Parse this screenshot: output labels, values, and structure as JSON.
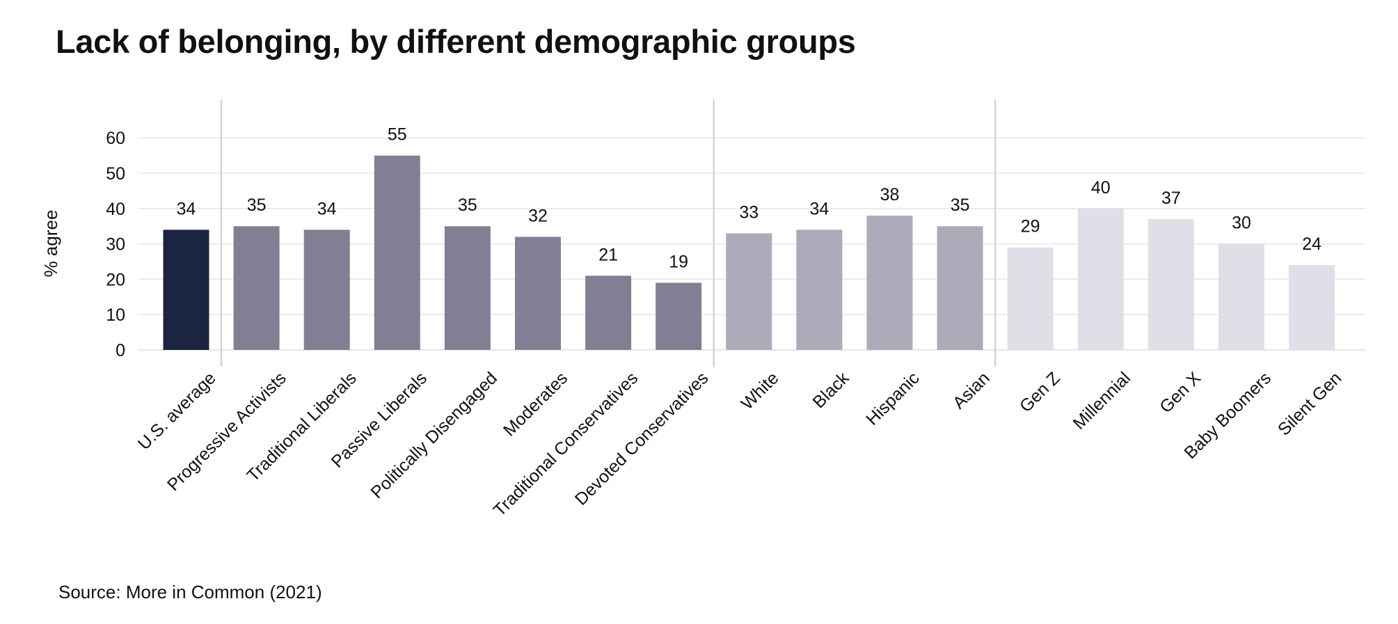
{
  "title": "Lack of belonging, by different demographic groups",
  "source": "Source: More in Common (2021)",
  "chart_data": {
    "type": "bar",
    "title": "Lack of belonging, by different demographic groups",
    "xlabel": "",
    "ylabel": "% agree",
    "ylim": [
      0,
      70
    ],
    "yticks": [
      0,
      10,
      20,
      30,
      40,
      50,
      60
    ],
    "grid": true,
    "legend": "none",
    "categories": [
      "U.S. average",
      "Progressive Activists",
      "Traditional Liberals",
      "Passive Liberals",
      "Politically Disengaged",
      "Moderates",
      "Traditional Conservatives",
      "Devoted Conservatives",
      "White",
      "Black",
      "Hispanic",
      "Asian",
      "Gen Z",
      "Millennial",
      "Gen X",
      "Baby Boomers",
      "Silent Gen"
    ],
    "values": [
      34,
      35,
      34,
      55,
      35,
      32,
      21,
      19,
      33,
      34,
      38,
      35,
      29,
      40,
      37,
      30,
      24
    ],
    "groups": [
      {
        "members": [
          "U.S. average"
        ],
        "color": "#1b2440"
      },
      {
        "members": [
          "Progressive Activists",
          "Traditional Liberals",
          "Passive Liberals",
          "Politically Disengaged",
          "Moderates",
          "Traditional Conservatives",
          "Devoted Conservatives"
        ],
        "color": "#817f93"
      },
      {
        "members": [
          "White",
          "Black",
          "Hispanic",
          "Asian"
        ],
        "color": "#adabba"
      },
      {
        "members": [
          "Gen Z",
          "Millennial",
          "Gen X",
          "Baby Boomers",
          "Silent Gen"
        ],
        "color": "#e0dfe7"
      }
    ],
    "colors": {
      "grid": "#e6e6e6",
      "separator": "#d4d4d4",
      "text": "#111111"
    }
  }
}
